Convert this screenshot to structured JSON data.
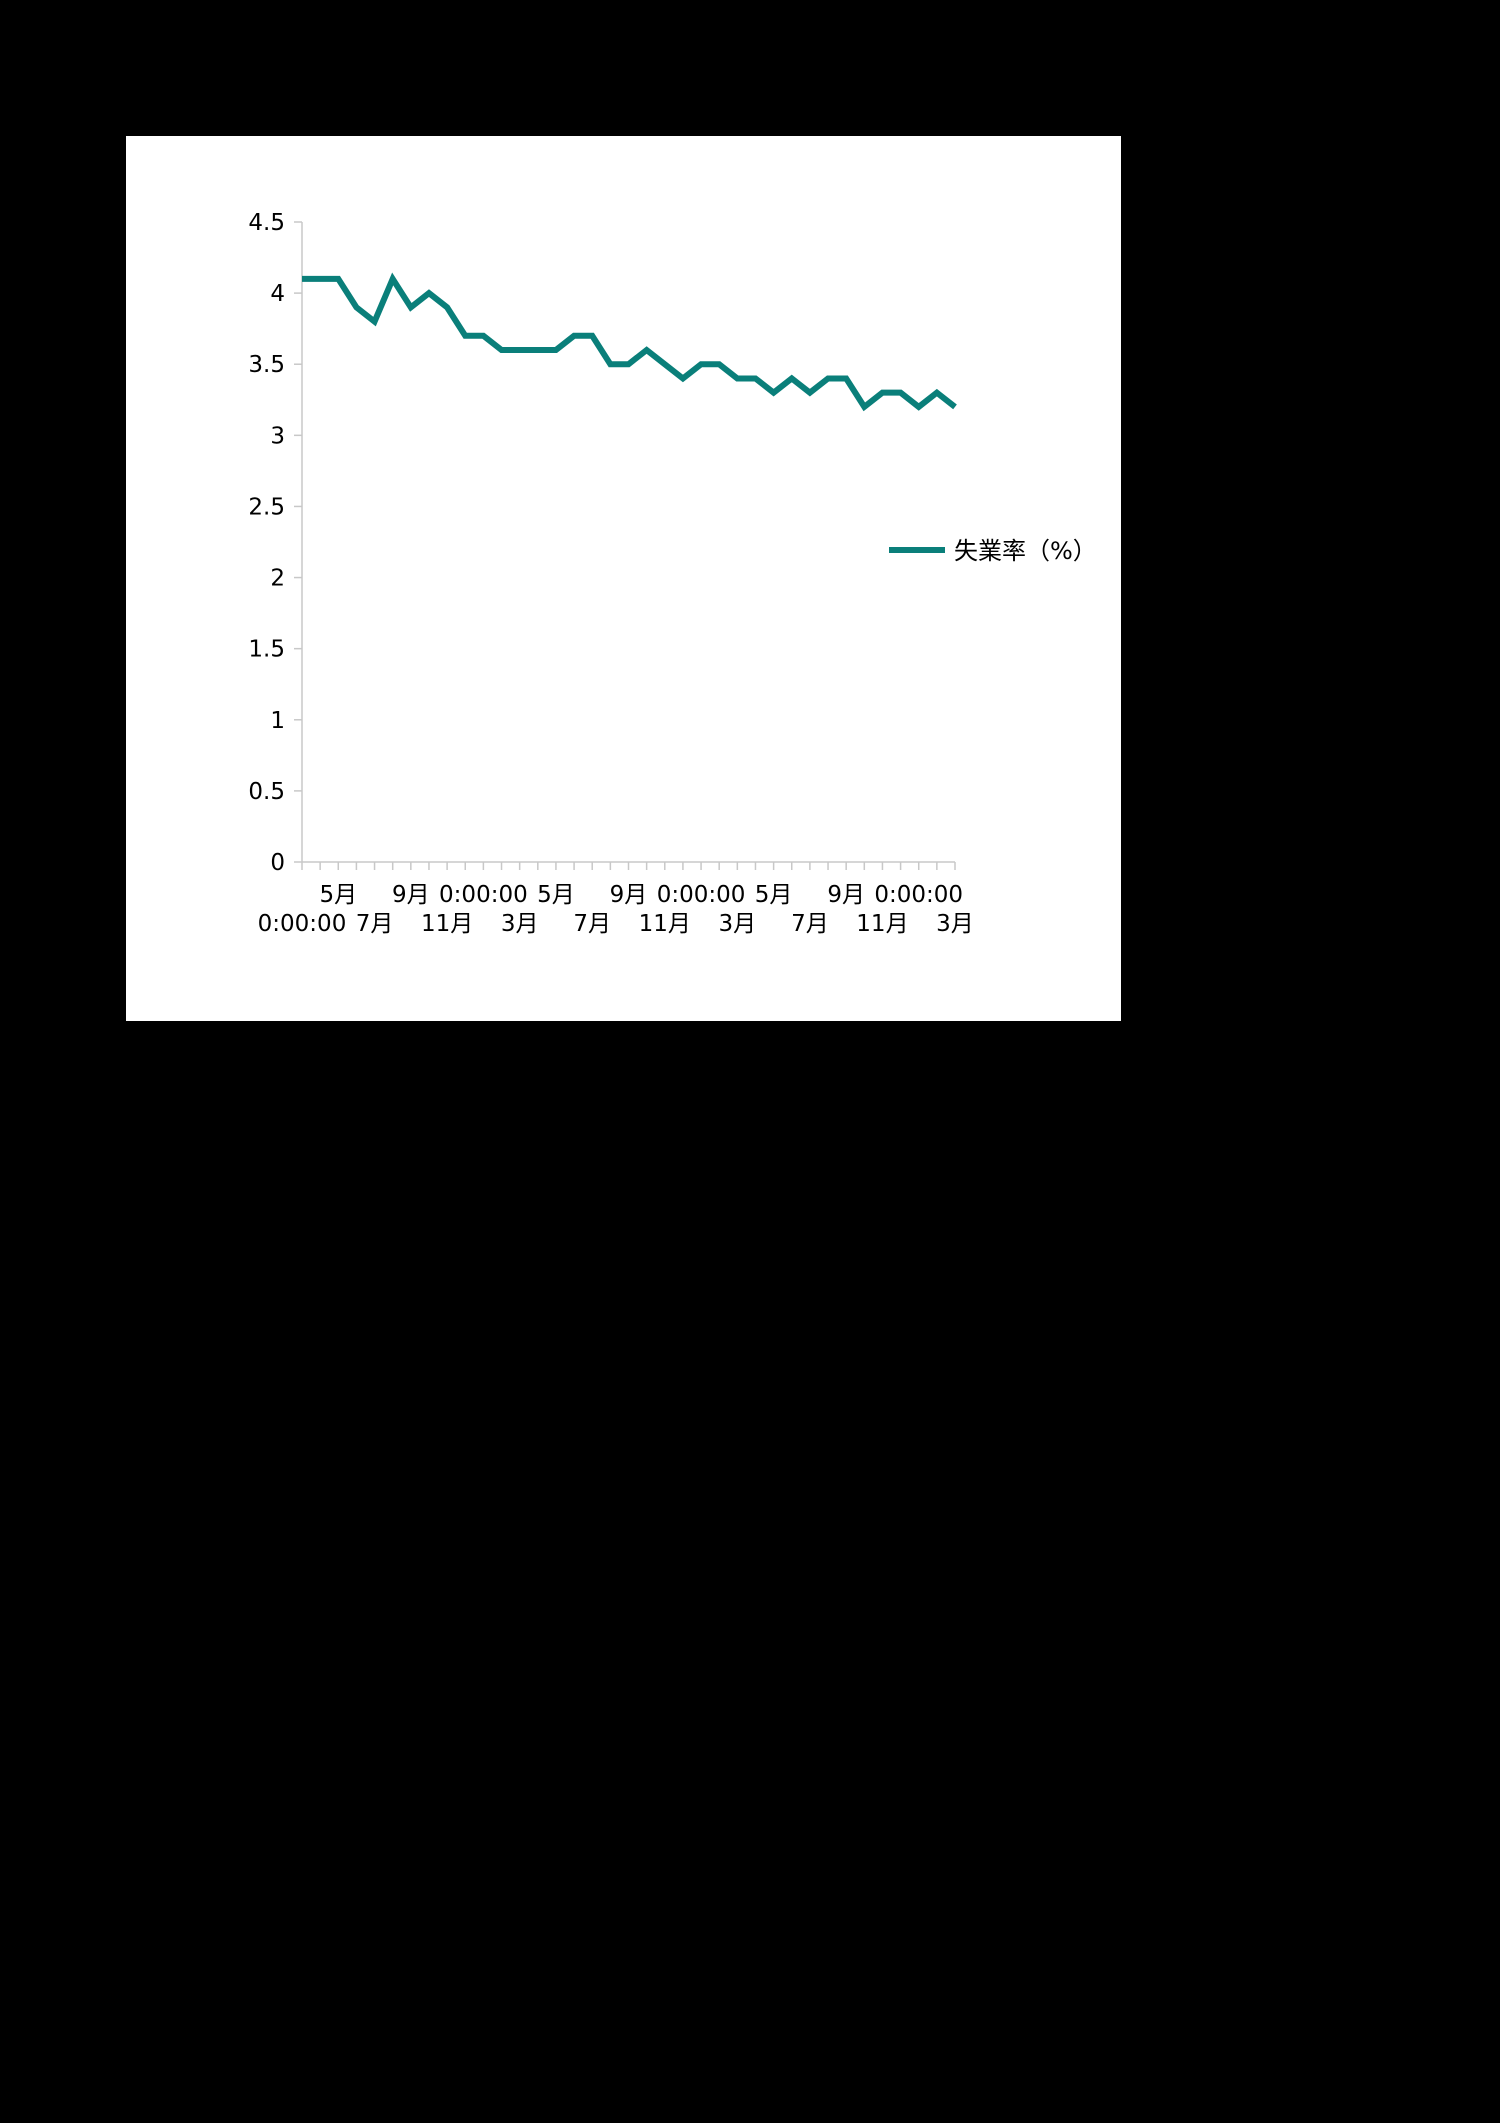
{
  "chart_data": {
    "type": "line",
    "title": "",
    "xlabel": "",
    "ylabel": "",
    "ylim": [
      0,
      4.5
    ],
    "y_ticks": [
      "0",
      "0.5",
      "1",
      "1.5",
      "2",
      "2.5",
      "3",
      "3.5",
      "4",
      "4.5"
    ],
    "x_tick_labels": [
      {
        "index": 0,
        "row": 2,
        "text": "0:00:00"
      },
      {
        "index": 2,
        "row": 1,
        "text": "5月"
      },
      {
        "index": 4,
        "row": 2,
        "text": "7月"
      },
      {
        "index": 6,
        "row": 1,
        "text": "9月"
      },
      {
        "index": 8,
        "row": 2,
        "text": "11月"
      },
      {
        "index": 10,
        "row": 1,
        "text": "0:00:00"
      },
      {
        "index": 12,
        "row": 2,
        "text": "3月"
      },
      {
        "index": 14,
        "row": 1,
        "text": "5月"
      },
      {
        "index": 16,
        "row": 2,
        "text": "7月"
      },
      {
        "index": 18,
        "row": 1,
        "text": "9月"
      },
      {
        "index": 20,
        "row": 2,
        "text": "11月"
      },
      {
        "index": 22,
        "row": 1,
        "text": "0:00:00"
      },
      {
        "index": 24,
        "row": 2,
        "text": "3月"
      },
      {
        "index": 26,
        "row": 1,
        "text": "5月"
      },
      {
        "index": 28,
        "row": 2,
        "text": "7月"
      },
      {
        "index": 30,
        "row": 1,
        "text": "9月"
      },
      {
        "index": 32,
        "row": 2,
        "text": "11月"
      },
      {
        "index": 34,
        "row": 1,
        "text": "0:00:00"
      },
      {
        "index": 36,
        "row": 2,
        "text": "3月"
      }
    ],
    "series": [
      {
        "name": "失業率（%）",
        "color": "#0a7f7a",
        "values": [
          4.1,
          4.1,
          4.1,
          3.9,
          3.8,
          4.1,
          3.9,
          4.0,
          3.9,
          3.7,
          3.7,
          3.6,
          3.6,
          3.6,
          3.6,
          3.7,
          3.7,
          3.5,
          3.5,
          3.6,
          3.5,
          3.4,
          3.5,
          3.5,
          3.4,
          3.4,
          3.3,
          3.4,
          3.3,
          3.4,
          3.4,
          3.2,
          3.3,
          3.3,
          3.2,
          3.3,
          3.2
        ]
      }
    ],
    "grid": false,
    "legend_position": "right"
  }
}
